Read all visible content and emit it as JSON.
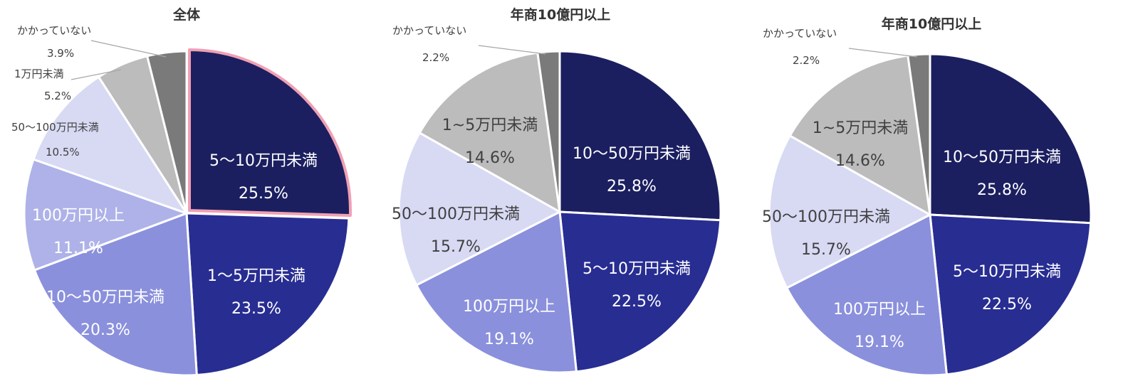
{
  "chart_data": [
    {
      "type": "pie",
      "title": "全体",
      "highlight": "5〜10万円未満",
      "slices": [
        {
          "label": "5〜10万円未満",
          "value": 25.5,
          "value_text": "25.5%",
          "color": "#1b1f60",
          "label_color": "#ffffff",
          "outside": false
        },
        {
          "label": "1〜5万円未満",
          "value": 23.5,
          "value_text": "23.5%",
          "color": "#282d92",
          "label_color": "#ffffff",
          "outside": false
        },
        {
          "label": "10〜50万円未満",
          "value": 20.3,
          "value_text": "20.3%",
          "color": "#8a90dc",
          "label_color": "#ffffff",
          "outside": false
        },
        {
          "label": "100万円以上",
          "value": 11.1,
          "value_text": "11.1%",
          "color": "#aeb2e8",
          "label_color": "#ffffff",
          "outside": false
        },
        {
          "label": "50〜100万円未満",
          "value": 10.5,
          "value_text": "10.5%",
          "color": "#d8daf4",
          "label_color": "#404040",
          "outside": true
        },
        {
          "label": "1万円未満",
          "value": 5.2,
          "value_text": "5.2%",
          "color": "#bcbcbc",
          "label_color": "#404040",
          "outside": true
        },
        {
          "label": "かかっていない",
          "value": 3.9,
          "value_text": "3.9%",
          "color": "#7a7a7a",
          "label_color": "#404040",
          "outside": true
        }
      ]
    },
    {
      "type": "pie",
      "title": "年商10億円以上",
      "slices": [
        {
          "label": "10〜50万円未満",
          "value": 25.8,
          "value_text": "25.8%",
          "color": "#1b1f60",
          "label_color": "#ffffff",
          "outside": false
        },
        {
          "label": "5〜10万円未満",
          "value": 22.5,
          "value_text": "22.5%",
          "color": "#282d92",
          "label_color": "#ffffff",
          "outside": false
        },
        {
          "label": "100万円以上",
          "value": 19.1,
          "value_text": "19.1%",
          "color": "#8a90dc",
          "label_color": "#ffffff",
          "outside": false
        },
        {
          "label": "50〜100万円未満",
          "value": 15.7,
          "value_text": "15.7%",
          "color": "#d8daf4",
          "label_color": "#404040",
          "outside": false
        },
        {
          "label": "1~5万円未満",
          "value": 14.6,
          "value_text": "14.6%",
          "color": "#bcbcbc",
          "label_color": "#404040",
          "outside": false
        },
        {
          "label": "かかっていない",
          "value": 2.2,
          "value_text": "2.2%",
          "color": "#7a7a7a",
          "label_color": "#404040",
          "outside": true
        }
      ]
    },
    {
      "type": "pie",
      "title": "年商10億円以上",
      "slices": [
        {
          "label": "10〜50万円未満",
          "value": 25.8,
          "value_text": "25.8%",
          "color": "#1b1f60",
          "label_color": "#ffffff",
          "outside": false
        },
        {
          "label": "5〜10万円未満",
          "value": 22.5,
          "value_text": "22.5%",
          "color": "#282d92",
          "label_color": "#ffffff",
          "outside": false
        },
        {
          "label": "100万円以上",
          "value": 19.1,
          "value_text": "19.1%",
          "color": "#8a90dc",
          "label_color": "#ffffff",
          "outside": false
        },
        {
          "label": "50〜100万円未満",
          "value": 15.7,
          "value_text": "15.7%",
          "color": "#d8daf4",
          "label_color": "#404040",
          "outside": false
        },
        {
          "label": "1~5万円未満",
          "value": 14.6,
          "value_text": "14.6%",
          "color": "#bcbcbc",
          "label_color": "#404040",
          "outside": false
        },
        {
          "label": "かかっていない",
          "value": 2.2,
          "value_text": "2.2%",
          "color": "#7a7a7a",
          "label_color": "#404040",
          "outside": true
        }
      ]
    }
  ],
  "colors": {
    "highlight_outline": "#f0a0b4",
    "leader_line": "#a6a6a6",
    "title_text": "#333333"
  }
}
